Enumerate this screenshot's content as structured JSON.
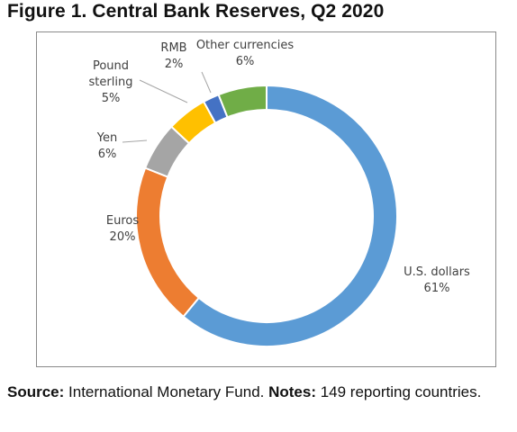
{
  "figure": {
    "title": "Figure 1. Central Bank Reserves, Q2 2020"
  },
  "chart_data": {
    "type": "donut",
    "title": "Figure 1. Central Bank Reserves, Q2 2020",
    "categories": [
      "U.S. dollars",
      "Euros",
      "Yen",
      "Pound sterling",
      "RMB",
      "Other currencies"
    ],
    "values": [
      61,
      20,
      6,
      5,
      2,
      6
    ],
    "unit": "%",
    "colors": [
      "#5B9BD5",
      "#ED7D31",
      "#A5A5A5",
      "#FFC000",
      "#4472C4",
      "#70AD47"
    ],
    "labels": [
      {
        "name": "U.S. dollars",
        "value": "61%"
      },
      {
        "name": "Euros",
        "value": "20%"
      },
      {
        "name": "Yen",
        "value": "6%"
      },
      {
        "name_line1": "Pound",
        "name_line2": "sterling",
        "value": "5%"
      },
      {
        "name": "RMB",
        "value": "2%"
      },
      {
        "name": "Other currencies",
        "value": "6%"
      }
    ],
    "legend": "none (data labels with leader lines)"
  },
  "source": {
    "source_label": "Source:",
    "source_text": " International Monetary Fund. ",
    "notes_label": "Notes:",
    "notes_text": " 149 reporting countries."
  }
}
